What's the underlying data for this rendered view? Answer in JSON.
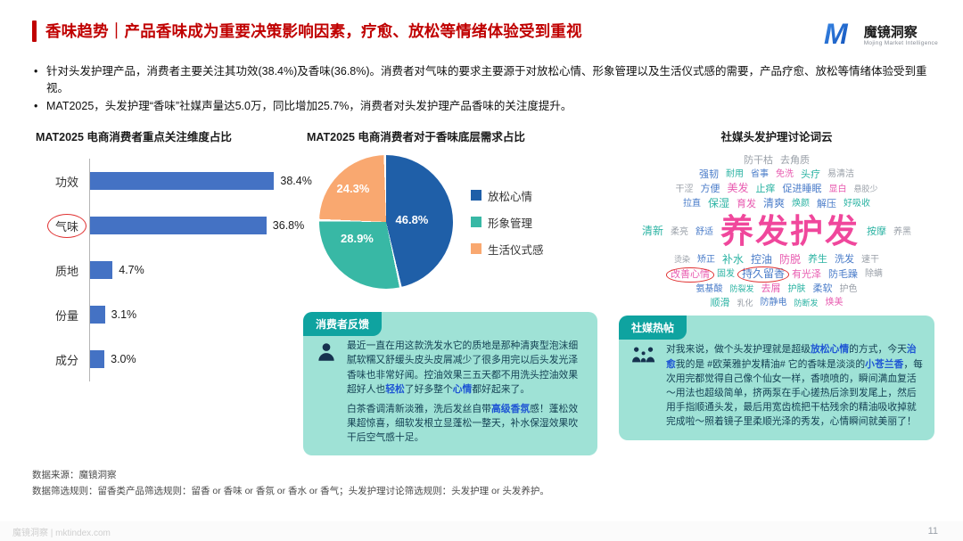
{
  "header": {
    "title": "香味趋势｜产品香味成为重要决策影响因素，疗愈、放松等情绪体验受到重视",
    "logo": {
      "brand": "魔镜洞察",
      "subtitle": "Mojing Market Intelligence",
      "mark": "M"
    }
  },
  "bullets": [
    "针对头发护理产品，消费者主要关注其功效(38.4%)及香味(36.8%)。消费者对气味的要求主要源于对放松心情、形象管理以及生活仪式感的需要，产品疗愈、放松等情绪体验受到重视。",
    "MAT2025，头发护理“香味”社媒声量达5.0万，同比增加25.7%，消费者对头发护理产品香味的关注度提升。"
  ],
  "chart_data": [
    {
      "type": "bar",
      "title": "MAT2025 电商消费者重点关注维度占比",
      "orientation": "horizontal",
      "categories": [
        "功效",
        "气味",
        "质地",
        "份量",
        "成分"
      ],
      "values": [
        38.4,
        36.8,
        4.7,
        3.1,
        3.0
      ],
      "unit": "%",
      "xlim": [
        0,
        40
      ],
      "highlighted_category": "气味",
      "bar_color": "#4472C4"
    },
    {
      "type": "pie",
      "title": "MAT2025 电商消费者对于香味底层需求占比",
      "labels": [
        "放松心情",
        "形象管理",
        "生活仪式感"
      ],
      "values": [
        46.8,
        28.9,
        24.3
      ],
      "colors": [
        "#1F5FA8",
        "#38B8A5",
        "#F9A870"
      ],
      "legend_position": "right"
    }
  ],
  "word_cloud": {
    "title": "社媒头发护理讨论词云",
    "rows": [
      [
        {
          "t": "防干枯",
          "s": 11,
          "c": "#9AA0A8"
        },
        {
          "t": "去角质",
          "s": 11,
          "c": "#9AA0A8"
        }
      ],
      [
        {
          "t": "强韧",
          "s": 11,
          "c": "#4A7CC9"
        },
        {
          "t": "耐用",
          "s": 10,
          "c": "#2BB3A3"
        },
        {
          "t": "省事",
          "s": 10,
          "c": "#4A7CC9"
        },
        {
          "t": "免洗",
          "s": 10,
          "c": "#E85BB0"
        },
        {
          "t": "头疗",
          "s": 11,
          "c": "#2BB3A3"
        },
        {
          "t": "易清洁",
          "s": 10,
          "c": "#9AA0A8"
        }
      ],
      [
        {
          "t": "干涩",
          "s": 10,
          "c": "#9AA0A8"
        },
        {
          "t": "方便",
          "s": 11,
          "c": "#4A7CC9"
        },
        {
          "t": "美发",
          "s": 12,
          "c": "#E85BB0"
        },
        {
          "t": "止痒",
          "s": 11,
          "c": "#2BB3A3"
        },
        {
          "t": "促进睡眠",
          "s": 11,
          "c": "#4A7CC9"
        },
        {
          "t": "显白",
          "s": 10,
          "c": "#E85BB0"
        },
        {
          "t": "悬胶少",
          "s": 9,
          "c": "#9AA0A8"
        }
      ],
      [
        {
          "t": "拉直",
          "s": 10,
          "c": "#4A7CC9"
        },
        {
          "t": "保湿",
          "s": 12,
          "c": "#2BB3A3"
        },
        {
          "t": "育发",
          "s": 11,
          "c": "#E85BB0"
        },
        {
          "t": "清爽",
          "s": 12,
          "c": "#4A7CC9"
        },
        {
          "t": "焕颜",
          "s": 10,
          "c": "#2BB3A3"
        },
        {
          "t": "解压",
          "s": 11,
          "c": "#4A7CC9"
        },
        {
          "t": "好吸收",
          "s": 10,
          "c": "#2BB3A3"
        }
      ],
      [
        {
          "t": "清新",
          "s": 12,
          "c": "#2BB3A3"
        },
        {
          "t": "柔亮",
          "s": 10,
          "c": "#9AA0A8"
        },
        {
          "t": "舒适",
          "s": 10,
          "c": "#4A7CC9"
        },
        {
          "t": "养发护发",
          "s": 37,
          "c": "#F0479C",
          "big": true
        },
        {
          "t": "按摩",
          "s": 11,
          "c": "#2BB3A3"
        },
        {
          "t": "养黑",
          "s": 10,
          "c": "#9AA0A8"
        }
      ],
      [
        {
          "t": "烫染",
          "s": 9,
          "c": "#9AA0A8"
        },
        {
          "t": "矫正",
          "s": 10,
          "c": "#4A7CC9"
        },
        {
          "t": "补水",
          "s": 12,
          "c": "#2BB3A3"
        },
        {
          "t": "控油",
          "s": 12,
          "c": "#4A7CC9"
        },
        {
          "t": "防脱",
          "s": 12,
          "c": "#E85BB0"
        },
        {
          "t": "养生",
          "s": 11,
          "c": "#2BB3A3"
        },
        {
          "t": "洗发",
          "s": 11,
          "c": "#4A7CC9"
        },
        {
          "t": "速干",
          "s": 10,
          "c": "#9AA0A8"
        }
      ],
      [
        {
          "t": "改善心情",
          "s": 11,
          "c": "#E85BB0",
          "circled": true
        },
        {
          "t": "固发",
          "s": 10,
          "c": "#2BB3A3"
        },
        {
          "t": "持久留香",
          "s": 12,
          "c": "#4A7CC9",
          "circled": true
        },
        {
          "t": "有光泽",
          "s": 11,
          "c": "#E85BB0"
        },
        {
          "t": "防毛躁",
          "s": 11,
          "c": "#4A7CC9"
        },
        {
          "t": "除螨",
          "s": 10,
          "c": "#9AA0A8"
        }
      ],
      [
        {
          "t": "氨基酸",
          "s": 10,
          "c": "#4A7CC9"
        },
        {
          "t": "防裂发",
          "s": 9,
          "c": "#2BB3A3"
        },
        {
          "t": "去屑",
          "s": 11,
          "c": "#E85BB0"
        },
        {
          "t": "护肤",
          "s": 10,
          "c": "#2BB3A3"
        },
        {
          "t": "柔软",
          "s": 11,
          "c": "#4A7CC9"
        },
        {
          "t": "护色",
          "s": 10,
          "c": "#9AA0A8"
        }
      ],
      [
        {
          "t": "顺滑",
          "s": 11,
          "c": "#2BB3A3"
        },
        {
          "t": "乳化",
          "s": 9,
          "c": "#9AA0A8"
        },
        {
          "t": "防静电",
          "s": 10,
          "c": "#4A7CC9"
        },
        {
          "t": "防断发",
          "s": 9,
          "c": "#2BB3A3"
        },
        {
          "t": "焕美",
          "s": 10,
          "c": "#E85BB0"
        }
      ]
    ]
  },
  "feedback": {
    "badge": "消费者反馈",
    "paragraphs": [
      [
        {
          "t": "最近一直在用这款洗发水它的质地是那种清爽型泡沫细腻软糯又舒缓头皮头皮屑减少了很多用完以后头发光泽香味也非常好闻。控油效果三五天都不用洗头控油效果超好人也"
        },
        {
          "t": "轻松",
          "h": true
        },
        {
          "t": "了好多整个"
        },
        {
          "t": "心情",
          "h": true
        },
        {
          "t": "都好起来了。"
        }
      ],
      [
        {
          "t": "白茶香调清新淡雅，洗后发丝自带"
        },
        {
          "t": "高级香氛",
          "h": true
        },
        {
          "t": "感！蓬松效果超惊喜，细软发根立显蓬松一整天，补水保湿效果吹干后空气感十足。"
        }
      ]
    ]
  },
  "hot_post": {
    "badge": "社媒热帖",
    "paragraphs": [
      [
        {
          "t": "对我来说，做个头发护理就是超级"
        },
        {
          "t": "放松心情",
          "h": true
        },
        {
          "t": "的方式，今天"
        },
        {
          "t": "治愈",
          "h": true
        },
        {
          "t": "我的是 #欧莱雅护发精油# 它的香味是淡淡的"
        },
        {
          "t": "小苍兰香",
          "h": true
        },
        {
          "t": "，每次用完都觉得自己像个仙女一样，香喷喷的，瞬间满血复活～用法也超级简单，挤两泵在手心搓热后涂到发尾上，然后用手指顺通头发，最后用宽齿梳把干枯残余的精油吸收掉就完成啦～照着镜子里柔顺光泽的秀发，心情瞬间就美丽了！"
        }
      ]
    ]
  },
  "footer": {
    "source": "数据来源：魔镜洞察",
    "rule": "数据筛选规则：留香类产品筛选规则：留香 or 香味 or 香氛 or 香水 or 香气；头发护理讨论筛选规则：头发护理 or 头发养护。",
    "watermark": "魔镜洞察 | mktindex.com",
    "page": "11"
  }
}
